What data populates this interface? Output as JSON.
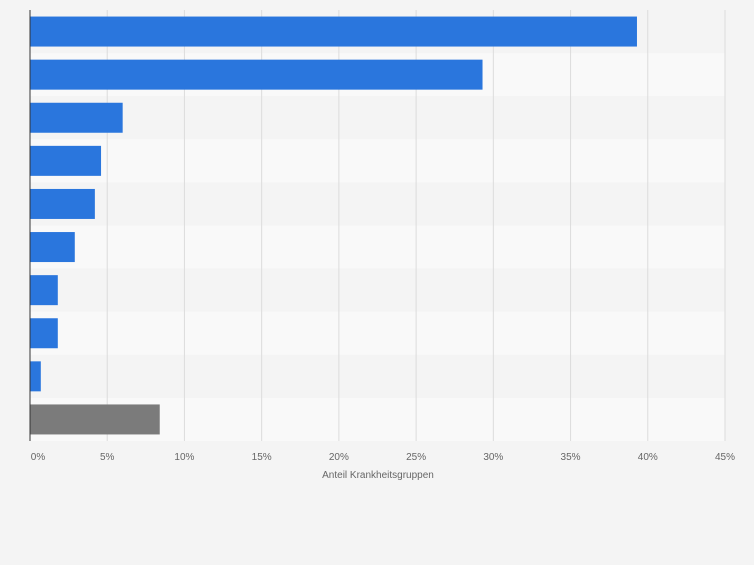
{
  "chart_data": {
    "type": "bar",
    "orientation": "horizontal",
    "categories": [
      "",
      "",
      "",
      "",
      "",
      "",
      "",
      "",
      "",
      ""
    ],
    "values": [
      39.3,
      29.3,
      6.0,
      4.6,
      4.2,
      2.9,
      1.8,
      1.8,
      0.7,
      8.4
    ],
    "bar_colors": [
      "#2a76dd",
      "#2a76dd",
      "#2a76dd",
      "#2a76dd",
      "#2a76dd",
      "#2a76dd",
      "#2a76dd",
      "#2a76dd",
      "#2a76dd",
      "#7b7b7b"
    ],
    "xlabel": "Anteil Krankheitsgruppen",
    "xlim": [
      0,
      45
    ],
    "xticks": [
      0,
      5,
      10,
      15,
      20,
      25,
      30,
      35,
      40,
      45
    ],
    "xtick_labels": [
      "0%",
      "5%",
      "10%",
      "15%",
      "20%",
      "25%",
      "30%",
      "35%",
      "40%",
      "45%"
    ],
    "grid": true,
    "legend": "none",
    "colors": {
      "bar": "#2a76dd",
      "other_bar": "#7b7b7b",
      "band_dark": "#f4f4f4",
      "band_light": "#f9f9f9",
      "grid": "#dcdcdc",
      "axis": "#333333",
      "tick_text": "#666666"
    }
  }
}
